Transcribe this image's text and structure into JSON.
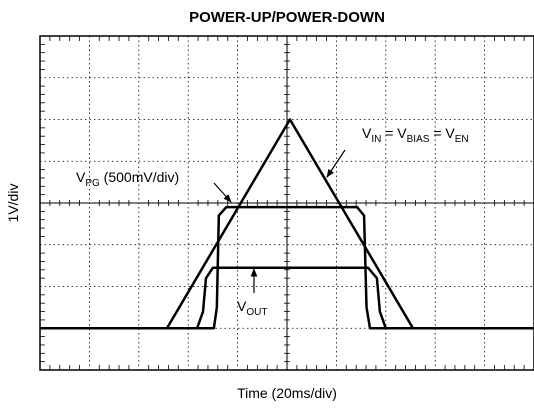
{
  "chart_data": {
    "type": "line",
    "title": "POWER-UP/POWER-DOWN",
    "y_label": "1V/div",
    "x_label": "Time (20ms/div)",
    "xlim": [
      0,
      10
    ],
    "ylim": [
      0,
      8
    ],
    "series": [
      {
        "name": "VIN",
        "color": "#000000",
        "x": [
          0,
          2.57,
          5.06,
          7.55,
          10
        ],
        "values": [
          1,
          1,
          6,
          1,
          1
        ]
      },
      {
        "name": "VPG",
        "color": "#000000",
        "x": [
          0,
          3.52,
          3.58,
          3.62,
          3.77,
          6.42,
          6.56,
          6.61,
          6.68,
          10
        ],
        "values": [
          1,
          1,
          1.5,
          3.7,
          3.9,
          3.9,
          3.7,
          1.5,
          1,
          1
        ]
      },
      {
        "name": "VOUT",
        "color": "#000000",
        "x": [
          0,
          3.18,
          3.3,
          3.36,
          3.5,
          6.64,
          6.82,
          6.88,
          7.0,
          10
        ],
        "values": [
          1,
          1,
          1.4,
          2.2,
          2.45,
          2.45,
          2.2,
          1.4,
          1,
          1
        ]
      }
    ],
    "annotations": [
      {
        "parts": [
          {
            "text": "V"
          },
          {
            "text": "IN",
            "sub": true
          },
          {
            "text": " = V"
          },
          {
            "text": "BIAS",
            "sub": true
          },
          {
            "text": " = V"
          },
          {
            "text": "EN",
            "sub": true
          }
        ]
      },
      {
        "parts": [
          {
            "text": "V"
          },
          {
            "text": "PG",
            "sub": true
          },
          {
            "text": " (500mV/div)"
          }
        ]
      },
      {
        "parts": [
          {
            "text": "V"
          },
          {
            "text": "OUT",
            "sub": true
          }
        ]
      }
    ]
  }
}
